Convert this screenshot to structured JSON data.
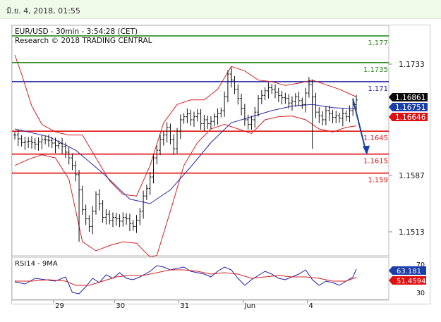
{
  "header": {
    "timestamp": "มิ.ย. 4, 2018, 01:55"
  },
  "chart_data": [
    {
      "type": "candlestick",
      "title": "EUR/USD - 30min - 3:54:28 (CET)",
      "subtitle": "Research © 2018 TRADING CENTRAL",
      "y_ticks": [
        "1.1733",
        "1.1587",
        "1.1513"
      ],
      "y_tick_values": [
        1.1733,
        1.1587,
        1.1513
      ],
      "x_ticks": [
        "29",
        "30",
        "31",
        "Jun",
        "4"
      ],
      "price_labels": [
        {
          "text": "1.16861",
          "value": 1.16861,
          "style": "current-price"
        },
        {
          "text": "1.16751",
          "value": 1.16751,
          "style": "ma"
        },
        {
          "text": "1.16646",
          "value": 1.16646,
          "style": "band"
        }
      ],
      "levels": [
        {
          "label": "1.177",
          "value": 1.177,
          "color": "#2e8b1e"
        },
        {
          "label": "1.1735",
          "value": 1.1735,
          "color": "#2e8b1e"
        },
        {
          "label": "1.171",
          "value": 1.171,
          "color": "#1c1ca8"
        },
        {
          "label": "1.1645",
          "value": 1.1645,
          "color": "#e01010"
        },
        {
          "label": "1.1615",
          "value": 1.1615,
          "color": "#e01010"
        },
        {
          "label": "1.159",
          "value": 1.159,
          "color": "#e01010"
        }
      ],
      "forecast": {
        "direction": "down",
        "from": 1.1675,
        "to": 1.1615
      },
      "close_path": [
        [
          0,
          1.164
        ],
        [
          2,
          1.163
        ],
        [
          4,
          1.1632
        ],
        [
          6,
          1.1628
        ],
        [
          8,
          1.1634
        ],
        [
          10,
          1.1633
        ],
        [
          12,
          1.1626
        ],
        [
          13,
          1.1629
        ],
        [
          14,
          1.1625
        ],
        [
          16,
          1.161
        ],
        [
          17,
          1.16
        ],
        [
          18,
          1.1588
        ],
        [
          19,
          1.1568
        ],
        [
          20,
          1.1542
        ],
        [
          21,
          1.153
        ],
        [
          22,
          1.152
        ],
        [
          23,
          1.154
        ],
        [
          24,
          1.1562
        ],
        [
          25,
          1.155
        ],
        [
          26,
          1.1532
        ],
        [
          27,
          1.1536
        ],
        [
          28,
          1.1528
        ],
        [
          29,
          1.1532
        ],
        [
          30,
          1.153
        ],
        [
          31,
          1.1527
        ],
        [
          32,
          1.1532
        ],
        [
          33,
          1.153
        ],
        [
          34,
          1.1524
        ],
        [
          35,
          1.152
        ],
        [
          36,
          1.1528
        ],
        [
          37,
          1.154
        ],
        [
          38,
          1.156
        ],
        [
          39,
          1.157
        ],
        [
          40,
          1.1585
        ],
        [
          41,
          1.161
        ],
        [
          42,
          1.162
        ],
        [
          43,
          1.1634
        ],
        [
          44,
          1.164
        ],
        [
          45,
          1.165
        ],
        [
          46,
          1.1634
        ],
        [
          47,
          1.1622
        ],
        [
          48,
          1.1645
        ],
        [
          49,
          1.166
        ],
        [
          50,
          1.1664
        ],
        [
          51,
          1.1668
        ],
        [
          52,
          1.166
        ],
        [
          53,
          1.1664
        ],
        [
          54,
          1.1668
        ],
        [
          55,
          1.1655
        ],
        [
          56,
          1.166
        ],
        [
          57,
          1.1655
        ],
        [
          58,
          1.1658
        ],
        [
          59,
          1.1664
        ],
        [
          60,
          1.1668
        ],
        [
          61,
          1.1672
        ],
        [
          62,
          1.169
        ],
        [
          63,
          1.172
        ],
        [
          64,
          1.1712
        ],
        [
          65,
          1.17
        ],
        [
          66,
          1.1688
        ],
        [
          67,
          1.1675
        ],
        [
          68,
          1.166
        ],
        [
          69,
          1.1654
        ],
        [
          70,
          1.166
        ],
        [
          71,
          1.167
        ],
        [
          72,
          1.1688
        ],
        [
          73,
          1.1692
        ],
        [
          74,
          1.1698
        ],
        [
          75,
          1.1702
        ],
        [
          76,
          1.17
        ],
        [
          77,
          1.1696
        ],
        [
          78,
          1.1692
        ],
        [
          79,
          1.1689
        ],
        [
          80,
          1.1688
        ],
        [
          81,
          1.1682
        ],
        [
          82,
          1.1684
        ],
        [
          83,
          1.169
        ],
        [
          84,
          1.1685
        ],
        [
          85,
          1.168
        ],
        [
          86,
          1.1695
        ],
        [
          87,
          1.1706
        ],
        [
          88,
          1.169
        ],
        [
          89,
          1.167
        ],
        [
          90,
          1.1665
        ],
        [
          91,
          1.166
        ],
        [
          92,
          1.1672
        ],
        [
          93,
          1.1668
        ],
        [
          94,
          1.1663
        ],
        [
          95,
          1.1665
        ],
        [
          96,
          1.1662
        ],
        [
          97,
          1.1668
        ],
        [
          98,
          1.1664
        ],
        [
          99,
          1.1672
        ],
        [
          100,
          1.168
        ],
        [
          101,
          1.1686
        ]
      ],
      "moving_average": [
        [
          0,
          1.1648
        ],
        [
          10,
          1.1638
        ],
        [
          18,
          1.162
        ],
        [
          26,
          1.159
        ],
        [
          34,
          1.1556
        ],
        [
          40,
          1.155
        ],
        [
          46,
          1.1568
        ],
        [
          52,
          1.1598
        ],
        [
          58,
          1.163
        ],
        [
          64,
          1.1656
        ],
        [
          70,
          1.1664
        ],
        [
          76,
          1.1672
        ],
        [
          82,
          1.1678
        ],
        [
          88,
          1.168
        ],
        [
          94,
          1.1676
        ],
        [
          101,
          1.1674
        ]
      ],
      "bollinger_upper": [
        [
          0,
          1.1745
        ],
        [
          2,
          1.172
        ],
        [
          5,
          1.1678
        ],
        [
          8,
          1.1654
        ],
        [
          12,
          1.1644
        ],
        [
          16,
          1.164
        ],
        [
          20,
          1.164
        ],
        [
          24,
          1.161
        ],
        [
          28,
          1.158
        ],
        [
          32,
          1.1562
        ],
        [
          36,
          1.156
        ],
        [
          40,
          1.16
        ],
        [
          44,
          1.1656
        ],
        [
          48,
          1.168
        ],
        [
          52,
          1.1686
        ],
        [
          56,
          1.1686
        ],
        [
          60,
          1.17
        ],
        [
          64,
          1.173
        ],
        [
          68,
          1.1724
        ],
        [
          72,
          1.1712
        ],
        [
          76,
          1.171
        ],
        [
          80,
          1.1705
        ],
        [
          84,
          1.1708
        ],
        [
          88,
          1.1712
        ],
        [
          92,
          1.1706
        ],
        [
          96,
          1.17
        ],
        [
          101,
          1.169
        ]
      ],
      "bollinger_lower": [
        [
          0,
          1.16
        ],
        [
          4,
          1.1608
        ],
        [
          8,
          1.1614
        ],
        [
          12,
          1.161
        ],
        [
          16,
          1.1582
        ],
        [
          20,
          1.15
        ],
        [
          24,
          1.1488
        ],
        [
          28,
          1.1495
        ],
        [
          32,
          1.15
        ],
        [
          36,
          1.1498
        ],
        [
          40,
          1.148
        ],
        [
          42,
          1.1482
        ],
        [
          46,
          1.154
        ],
        [
          50,
          1.16
        ],
        [
          54,
          1.163
        ],
        [
          58,
          1.1648
        ],
        [
          62,
          1.1654
        ],
        [
          66,
          1.1648
        ],
        [
          70,
          1.1642
        ],
        [
          74,
          1.166
        ],
        [
          78,
          1.1664
        ],
        [
          82,
          1.1665
        ],
        [
          86,
          1.166
        ],
        [
          90,
          1.1648
        ],
        [
          94,
          1.1644
        ],
        [
          98,
          1.165
        ],
        [
          101,
          1.1652
        ]
      ]
    },
    {
      "type": "line",
      "title": "RSI14 - 9MA",
      "y_ticks": [
        "70",
        "30"
      ],
      "y_tick_values": [
        70,
        30
      ],
      "ylim": [
        20,
        80
      ],
      "value_labels": [
        {
          "text": "63.181",
          "value": 63.181,
          "style": "rsi"
        },
        {
          "text": "51.4594",
          "value": 51.4594,
          "style": "ma"
        }
      ],
      "rsi": [
        [
          0,
          45
        ],
        [
          3,
          42
        ],
        [
          6,
          50
        ],
        [
          9,
          48
        ],
        [
          12,
          46
        ],
        [
          15,
          52
        ],
        [
          17,
          30
        ],
        [
          19,
          28
        ],
        [
          21,
          38
        ],
        [
          23,
          50
        ],
        [
          25,
          44
        ],
        [
          27,
          55
        ],
        [
          29,
          50
        ],
        [
          31,
          58
        ],
        [
          33,
          50
        ],
        [
          35,
          48
        ],
        [
          37,
          52
        ],
        [
          40,
          60
        ],
        [
          42,
          68
        ],
        [
          44,
          66
        ],
        [
          46,
          62
        ],
        [
          48,
          64
        ],
        [
          50,
          66
        ],
        [
          52,
          60
        ],
        [
          54,
          58
        ],
        [
          56,
          56
        ],
        [
          58,
          52
        ],
        [
          60,
          60
        ],
        [
          62,
          66
        ],
        [
          64,
          62
        ],
        [
          66,
          50
        ],
        [
          68,
          40
        ],
        [
          70,
          48
        ],
        [
          72,
          54
        ],
        [
          74,
          60
        ],
        [
          76,
          56
        ],
        [
          78,
          50
        ],
        [
          80,
          48
        ],
        [
          82,
          52
        ],
        [
          84,
          56
        ],
        [
          86,
          62
        ],
        [
          88,
          48
        ],
        [
          90,
          40
        ],
        [
          92,
          46
        ],
        [
          94,
          44
        ],
        [
          96,
          40
        ],
        [
          98,
          46
        ],
        [
          100,
          52
        ],
        [
          101,
          63.181
        ]
      ],
      "ma": [
        [
          0,
          46
        ],
        [
          5,
          46
        ],
        [
          10,
          48
        ],
        [
          15,
          46
        ],
        [
          18,
          40
        ],
        [
          22,
          40
        ],
        [
          26,
          46
        ],
        [
          30,
          52
        ],
        [
          34,
          54
        ],
        [
          38,
          54
        ],
        [
          42,
          58
        ],
        [
          46,
          62
        ],
        [
          50,
          62
        ],
        [
          54,
          60
        ],
        [
          58,
          56
        ],
        [
          62,
          58
        ],
        [
          66,
          56
        ],
        [
          70,
          50
        ],
        [
          74,
          52
        ],
        [
          78,
          54
        ],
        [
          82,
          52
        ],
        [
          86,
          52
        ],
        [
          90,
          50
        ],
        [
          94,
          46
        ],
        [
          98,
          46
        ],
        [
          101,
          51.4594
        ]
      ]
    }
  ]
}
